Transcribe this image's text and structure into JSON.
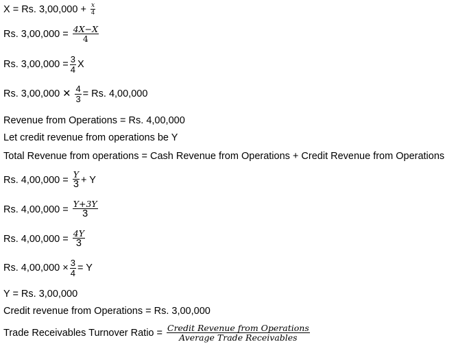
{
  "lines": [
    {
      "pre": "X = Rs. 3,00,000 + ",
      "num": "x",
      "den": "4",
      "post": ""
    },
    {
      "pre": "Rs. 3,00,000 = ",
      "num": "4X−X",
      "den": "4",
      "post": ""
    },
    {
      "pre": "Rs. 3,00,000 = ",
      "num": "3",
      "den": "4",
      "post": " X"
    },
    {
      "pre": "Rs. 3,00,000 ✕ ",
      "num": "4",
      "den": "3",
      "post": " = Rs. 4,00,000"
    },
    {
      "text": "Revenue from Operations = Rs. 4,00,000"
    },
    {
      "text": "Let credit revenue from operations be Y"
    },
    {
      "text": "Total Revenue from operations = Cash Revenue from Operations + Credit Revenue from Operations"
    },
    {
      "pre": "Rs. 4,00,000 = ",
      "num": "Y",
      "den": "3",
      "post": " + Y"
    },
    {
      "pre": "Rs. 4,00,000 = ",
      "num": "Y+3Y",
      "den": "3",
      "post": ""
    },
    {
      "pre": "Rs. 4,00,000 = ",
      "num": "4Y",
      "den": "3",
      "post": ""
    },
    {
      "pre": "Rs. 4,00,000 × ",
      "num": "3",
      "den": "4",
      "post": " = Y"
    },
    {
      "text": "Y = Rs. 3,00,000"
    },
    {
      "text": "Credit revenue from Operations = Rs. 3,00,000"
    },
    {
      "pre": "Trade Receivables Turnover Ratio = ",
      "num": "Credit Revenue from Operations",
      "den": "Average Trade Receivables",
      "post": ""
    }
  ]
}
